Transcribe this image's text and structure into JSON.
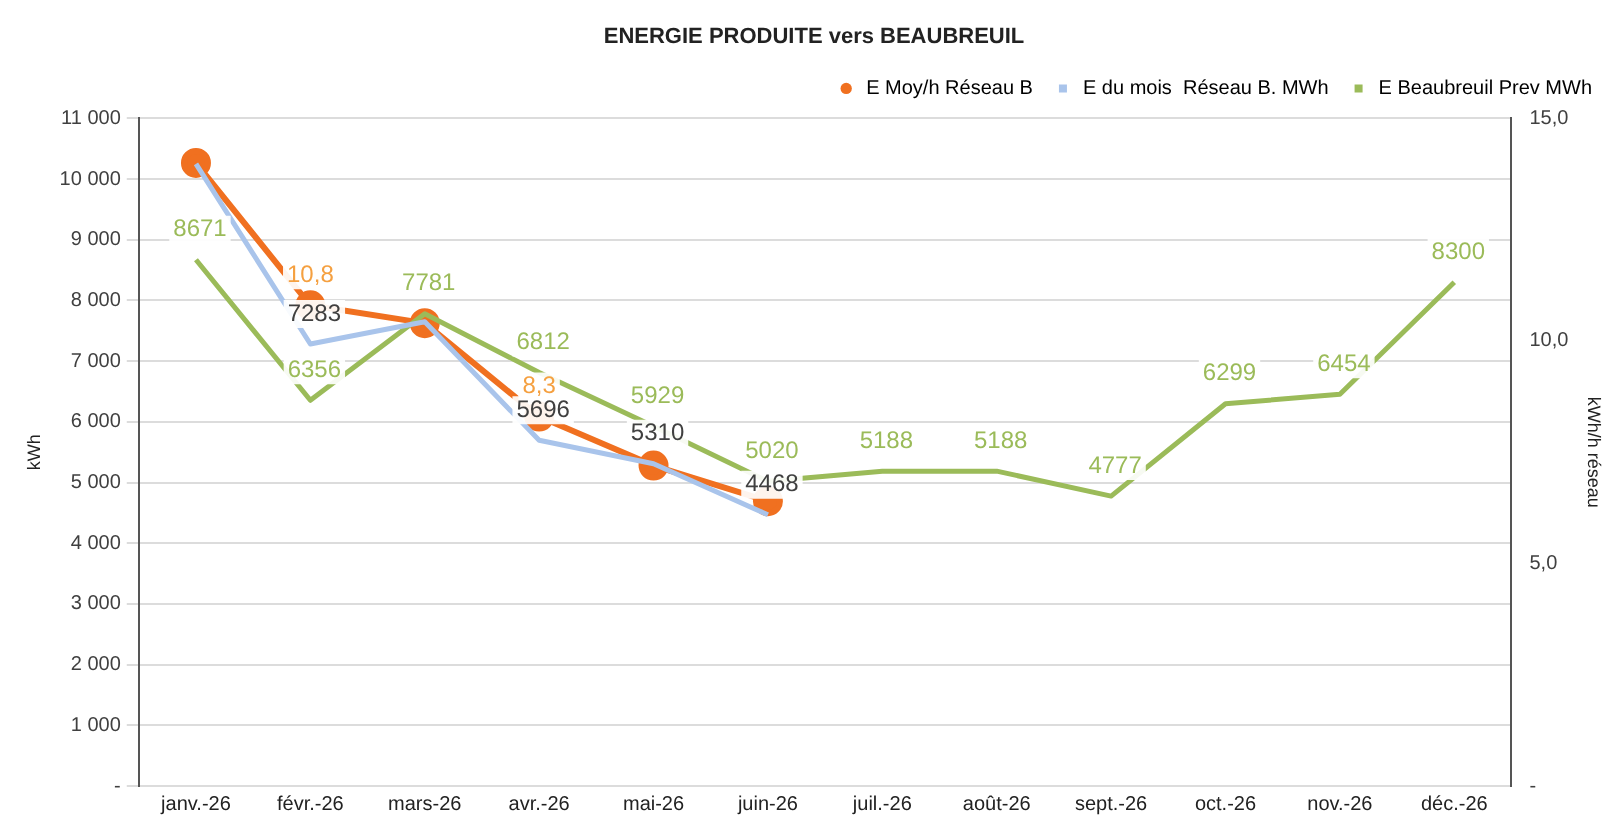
{
  "chart_data": {
    "type": "line",
    "title": "ENERGIE PRODUITE vers BEAUBREUIL",
    "ylabel": "kWh",
    "y2label": "kWh/h réseau",
    "categories": [
      "janv.-26",
      "févr.-26",
      "mars-26",
      "avr.-26",
      "mai-26",
      "juin-26",
      "juil.-26",
      "août-26",
      "sept.-26",
      "oct.-26",
      "nov.-26",
      "déc.-26"
    ],
    "series": [
      {
        "name": "E Moy/h Réseau B",
        "color": "#f07020",
        "axis": "y2",
        "marker": "circle",
        "values": [
          14.0,
          10.8,
          10.4,
          8.3,
          7.2,
          6.4,
          null,
          null,
          null,
          null,
          null,
          null
        ],
        "value_labels": [
          null,
          "10,8",
          null,
          "8,3",
          null,
          null,
          null,
          null,
          null,
          null,
          null,
          null
        ]
      },
      {
        "name": "E du mois  Réseau B. MWh",
        "color": "#a9c4eb",
        "marker": "none",
        "values": [
          10250,
          7283,
          7650,
          5696,
          5310,
          4468,
          null,
          null,
          null,
          null,
          null,
          null
        ],
        "value_labels": [
          null,
          "7283",
          null,
          "5696",
          "5310",
          "4468",
          null,
          null,
          null,
          null,
          null,
          null
        ]
      },
      {
        "name": "E Beaubreuil Prev MWh",
        "color": "#9bbb59",
        "marker": "none",
        "data_labels": true,
        "values": [
          8671,
          6356,
          7781,
          6812,
          5929,
          5020,
          5188,
          5188,
          4777,
          6299,
          6454,
          8300
        ]
      }
    ],
    "ylim": [
      0,
      11000
    ],
    "yticks": [
      {
        "value": 0,
        "label": "-"
      },
      {
        "value": 1000,
        "label": "1 000"
      },
      {
        "value": 2000,
        "label": "2 000"
      },
      {
        "value": 3000,
        "label": "3 000"
      },
      {
        "value": 4000,
        "label": "4 000"
      },
      {
        "value": 5000,
        "label": "5 000"
      },
      {
        "value": 6000,
        "label": "6 000"
      },
      {
        "value": 7000,
        "label": "7 000"
      },
      {
        "value": 8000,
        "label": "8 000"
      },
      {
        "value": 9000,
        "label": "9 000"
      },
      {
        "value": 10000,
        "label": "10 000"
      },
      {
        "value": 11000,
        "label": "11 000"
      }
    ],
    "y2lim": [
      0,
      15
    ],
    "y2ticks": [
      {
        "value": 0,
        "label": "-"
      },
      {
        "value": 5,
        "label": "5,0"
      },
      {
        "value": 10,
        "label": "10,0"
      },
      {
        "value": 15,
        "label": "15,0"
      }
    ],
    "grid": "y",
    "legend": "top right"
  }
}
